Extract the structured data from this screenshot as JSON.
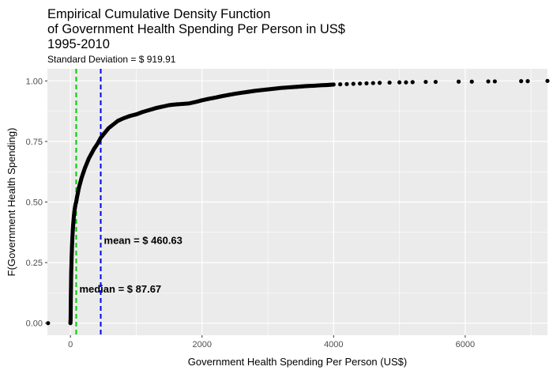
{
  "chart_data": {
    "type": "scatter",
    "title_lines": [
      "Empirical Cumulative Density Function",
      "of Government Health Spending Per Person in US$",
      "1995-2010"
    ],
    "subtitle": "Standard Deviation = $ 919.91",
    "xlabel": "Government Health Spending Per Person (US$)",
    "ylabel": "F(Government Health Spending)",
    "xlim": [
      -350,
      7250
    ],
    "ylim": [
      -0.05,
      1.05
    ],
    "x_ticks": [
      0,
      2000,
      4000,
      6000
    ],
    "x_tick_labels": [
      "0",
      "2000",
      "4000",
      "6000"
    ],
    "y_ticks": [
      0,
      0.25,
      0.5,
      0.75,
      1.0
    ],
    "y_tick_labels": [
      "0.00",
      "0.25",
      "0.50",
      "0.75",
      "1.00"
    ],
    "grid": true,
    "background": "#ebebeb",
    "point_color": "#000000",
    "series": [
      {
        "points": [
          [
            -340,
            0.0
          ],
          [
            0,
            0.0
          ],
          [
            1,
            0.005
          ],
          [
            2,
            0.01
          ],
          [
            3,
            0.02
          ],
          [
            4,
            0.04
          ],
          [
            5,
            0.07
          ],
          [
            6,
            0.1
          ],
          [
            8,
            0.14
          ],
          [
            10,
            0.18
          ],
          [
            12,
            0.21
          ],
          [
            15,
            0.24
          ],
          [
            18,
            0.27
          ],
          [
            22,
            0.3
          ],
          [
            26,
            0.33
          ],
          [
            30,
            0.355
          ],
          [
            35,
            0.38
          ],
          [
            40,
            0.4
          ],
          [
            46,
            0.42
          ],
          [
            52,
            0.44
          ],
          [
            60,
            0.46
          ],
          [
            68,
            0.475
          ],
          [
            77,
            0.49
          ],
          [
            87.67,
            0.5
          ],
          [
            100,
            0.52
          ],
          [
            115,
            0.54
          ],
          [
            130,
            0.56
          ],
          [
            150,
            0.58
          ],
          [
            170,
            0.6
          ],
          [
            195,
            0.62
          ],
          [
            220,
            0.64
          ],
          [
            250,
            0.66
          ],
          [
            280,
            0.68
          ],
          [
            320,
            0.7
          ],
          [
            360,
            0.72
          ],
          [
            410,
            0.74
          ],
          [
            460,
            0.765
          ],
          [
            520,
            0.785
          ],
          [
            580,
            0.805
          ],
          [
            650,
            0.82
          ],
          [
            720,
            0.835
          ],
          [
            800,
            0.845
          ],
          [
            900,
            0.855
          ],
          [
            1000,
            0.862
          ],
          [
            1100,
            0.872
          ],
          [
            1200,
            0.88
          ],
          [
            1300,
            0.888
          ],
          [
            1400,
            0.894
          ],
          [
            1500,
            0.9
          ],
          [
            1600,
            0.903
          ],
          [
            1700,
            0.905
          ],
          [
            1800,
            0.907
          ],
          [
            1900,
            0.913
          ],
          [
            2000,
            0.92
          ],
          [
            2100,
            0.926
          ],
          [
            2200,
            0.931
          ],
          [
            2300,
            0.937
          ],
          [
            2400,
            0.942
          ],
          [
            2500,
            0.947
          ],
          [
            2600,
            0.951
          ],
          [
            2700,
            0.955
          ],
          [
            2800,
            0.959
          ],
          [
            2900,
            0.962
          ],
          [
            3000,
            0.965
          ],
          [
            3100,
            0.968
          ],
          [
            3200,
            0.971
          ],
          [
            3300,
            0.973
          ],
          [
            3400,
            0.975
          ],
          [
            3500,
            0.977
          ],
          [
            3600,
            0.979
          ],
          [
            3700,
            0.98
          ],
          [
            3800,
            0.982
          ],
          [
            3900,
            0.983
          ],
          [
            4000,
            0.985
          ],
          [
            4100,
            0.986
          ],
          [
            4200,
            0.987
          ],
          [
            4300,
            0.988
          ],
          [
            4400,
            0.989
          ],
          [
            4500,
            0.99
          ],
          [
            4600,
            0.991
          ],
          [
            4700,
            0.992
          ],
          [
            4850,
            0.993
          ],
          [
            5000,
            0.994
          ],
          [
            5100,
            0.994
          ],
          [
            5200,
            0.995
          ],
          [
            5400,
            0.996
          ],
          [
            5550,
            0.996
          ],
          [
            5900,
            0.997
          ],
          [
            6100,
            0.997
          ],
          [
            6350,
            0.998
          ],
          [
            6450,
            0.998
          ],
          [
            6850,
            0.999
          ],
          [
            6950,
            0.999
          ],
          [
            7250,
            1.0
          ]
        ]
      }
    ],
    "reference_lines": [
      {
        "label": "median = $ 87.67",
        "x": 87.67,
        "color": "#00cc00",
        "label_y": 0.14
      },
      {
        "label": "mean = $ 460.63",
        "x": 460.63,
        "color": "#0000ee",
        "label_y": 0.34
      }
    ]
  }
}
